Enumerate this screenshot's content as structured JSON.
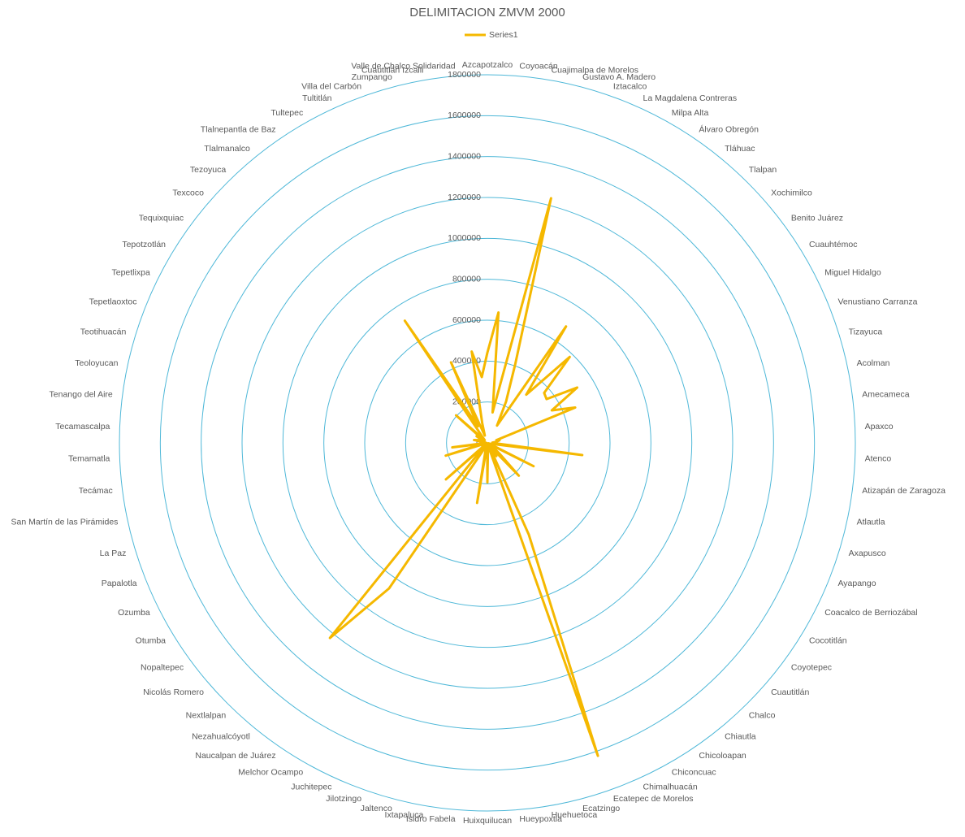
{
  "chart_data": {
    "type": "radar",
    "title": "DELIMITACION ZMVM 2000",
    "categories": [
      "Azcapotzalco",
      "Coyoacán",
      "Cuajimalpa de Morelos",
      "Gustavo A. Madero",
      "Iztacalco",
      "La Magdalena Contreras",
      "Milpa Alta",
      "Álvaro Obregón",
      "Tláhuac",
      "Tlalpan",
      "Xochimilco",
      "Benito Juárez",
      "Cuauhtémoc",
      "Miguel Hidalgo",
      "Venustiano Carranza",
      "Tizayuca",
      "Acolman",
      "Amecameca",
      "Apaxco",
      "Atenco",
      "Atizapán de Zaragoza",
      "Atlautla",
      "Axapusco",
      "Ayapango",
      "Coacalco de Berriozábal",
      "Cocotitlán",
      "Coyotepec",
      "Cuautitlán",
      "Chalco",
      "Chiautla",
      "Chicoloapan",
      "Chiconcuac",
      "Chimalhuacán",
      "Ecatepec de Morelos",
      "Ecatzingo",
      "Huehuetoca",
      "Hueypoxtla",
      "Huixquilucan",
      "Isidro Fabela",
      "Ixtapaluca",
      "Jaltenco",
      "Jilotzingo",
      "Juchitepec",
      "Melchor Ocampo",
      "Naucalpan de Juárez",
      "Nezahualcóyotl",
      "Nextlalpan",
      "Nicolás Romero",
      "Nopaltepec",
      "Otumba",
      "Ozumba",
      "Papalotla",
      "La Paz",
      "San Martín de las Pirámides",
      "Tecámac",
      "Temamatla",
      "Tecamascalpa",
      "Tenango del Aire",
      "Teoloyucan",
      "Teotihuacán",
      "Tepetlaoxtoc",
      "Tepetlixpa",
      "Tepotzotlán",
      "Tequixquiac",
      "Texcoco",
      "Tezoyuca",
      "Tlalmanalco",
      "Tlalnepantla de Baz",
      "Tultepec",
      "Tultitlán",
      "Villa del Carbón",
      "Zumpango",
      "Cuautitlán Izcalli",
      "Valle de Chalco Solidaridad"
    ],
    "series": [
      {
        "name": "Series1",
        "color": "#f5b800",
        "values": [
          441000,
          640000,
          151000,
          1236000,
          411000,
          222000,
          97000,
          687000,
          303000,
          582000,
          370000,
          360000,
          516000,
          353000,
          463000,
          46000,
          61000,
          45000,
          24000,
          34000,
          468000,
          26000,
          21000,
          6000,
          253000,
          12000,
          35000,
          76000,
          222000,
          20000,
          78000,
          18000,
          491000,
          1623000,
          8000,
          38000,
          33000,
          193000,
          8000,
          298000,
          32000,
          15000,
          19000,
          38000,
          859000,
          1226000,
          20000,
          270000,
          8000,
          29000,
          24000,
          3000,
          213000,
          20000,
          173000,
          9000,
          29000,
          8000,
          67000,
          45000,
          23000,
          17000,
          62000,
          28000,
          204000,
          19000,
          43000,
          721000,
          93000,
          432000,
          38000,
          100000,
          453000,
          323000
        ]
      }
    ],
    "ylim": [
      0,
      1800000
    ],
    "yticks": [
      0,
      200000,
      400000,
      600000,
      800000,
      1000000,
      1200000,
      1400000,
      1600000,
      1800000
    ],
    "grid": true,
    "legend": "top"
  }
}
